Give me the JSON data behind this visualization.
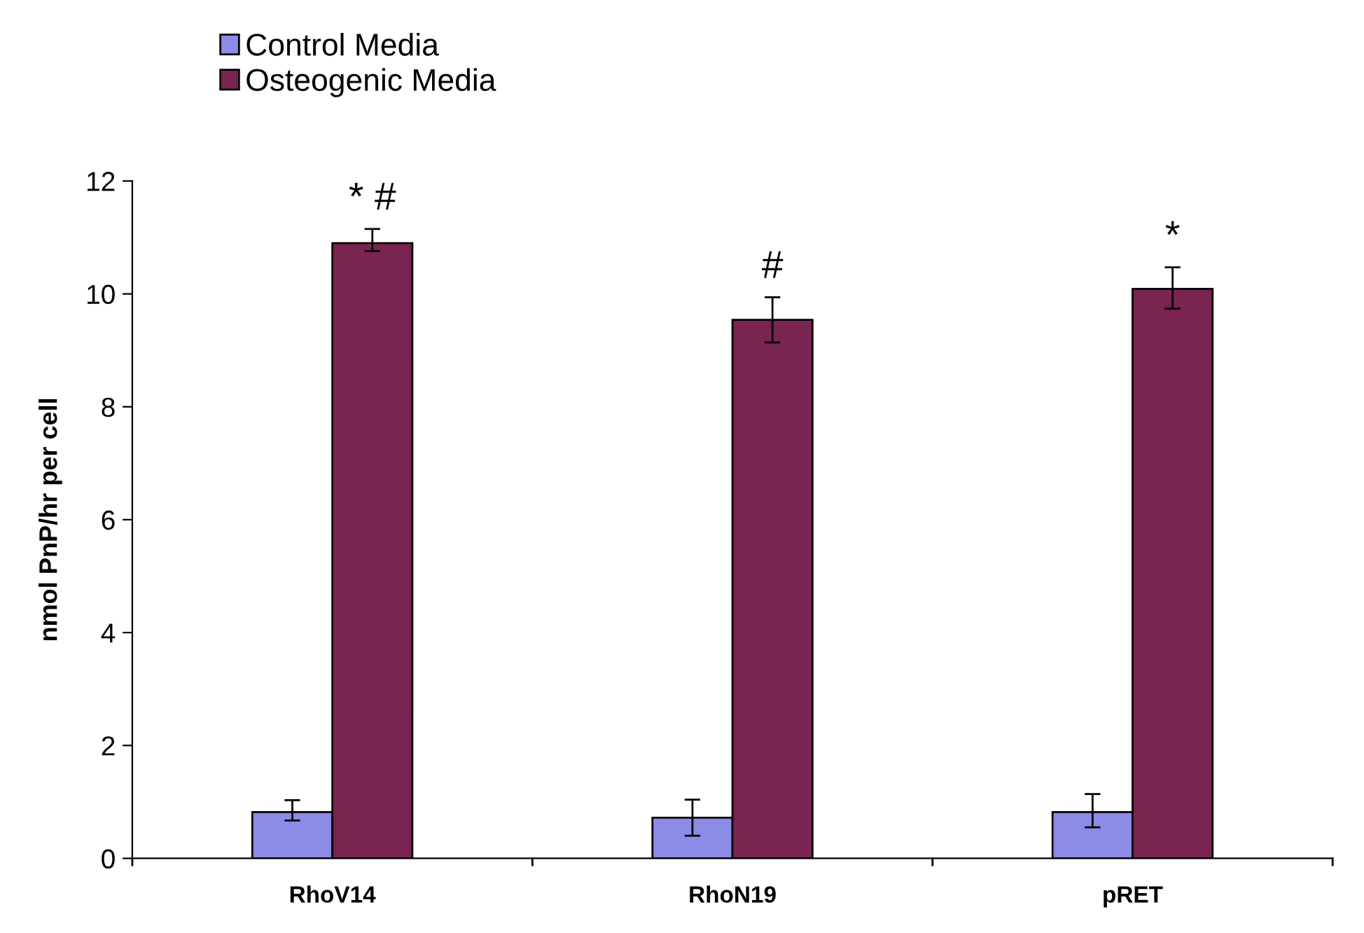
{
  "chart_data": {
    "type": "bar",
    "ylabel": "nmol PnP/hr per cell",
    "categories": [
      "RhoV14",
      "RhoN19",
      "pRET"
    ],
    "series": [
      {
        "name": "Control Media",
        "color": "#8c8ce6",
        "values": [
          0.82,
          0.72,
          0.82
        ],
        "errors": [
          [
            0.67,
            1.03
          ],
          [
            0.4,
            1.04
          ],
          [
            0.55,
            1.14
          ]
        ]
      },
      {
        "name": "Osteogenic Media",
        "color": "#7a2452",
        "values": [
          10.9,
          9.54,
          10.09
        ],
        "errors": [
          [
            10.76,
            11.15
          ],
          [
            9.14,
            9.94
          ],
          [
            9.74,
            10.47
          ]
        ]
      }
    ],
    "ylim": [
      0,
      12
    ],
    "yticks": [
      0,
      2,
      4,
      6,
      8,
      10,
      12
    ],
    "grid": false,
    "legend": "top left",
    "annotations": [
      "* #",
      "#",
      "*"
    ]
  }
}
